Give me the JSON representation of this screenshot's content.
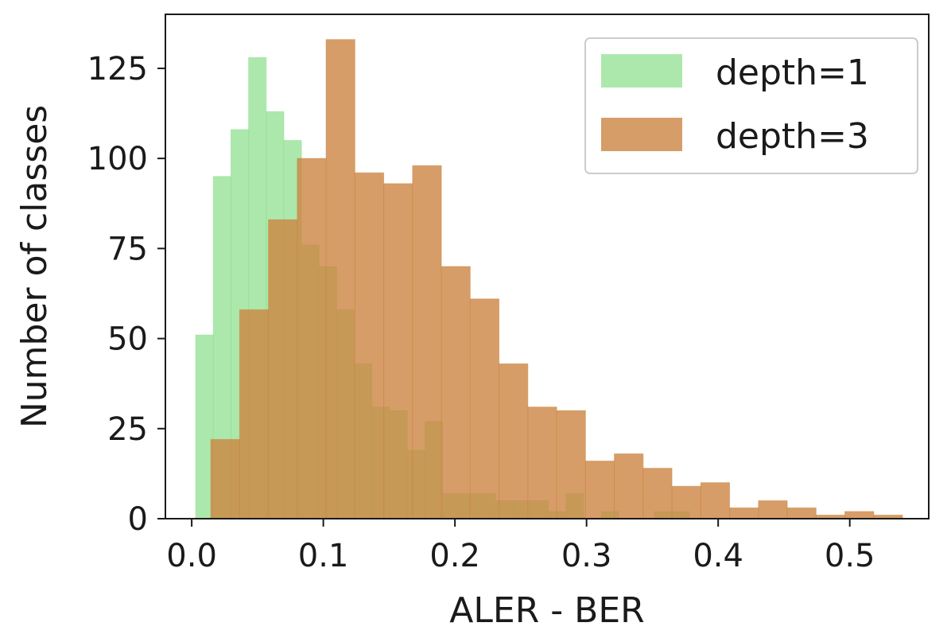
{
  "chart_data": {
    "type": "bar",
    "histogram": true,
    "xlabel": "ALER - BER",
    "ylabel": "Number of classes",
    "xlim": [
      -0.02,
      0.56
    ],
    "ylim": [
      0,
      140
    ],
    "xticks": [
      0.0,
      0.1,
      0.2,
      0.3,
      0.4,
      0.5
    ],
    "xtick_labels": [
      "0.0",
      "0.1",
      "0.2",
      "0.3",
      "0.4",
      "0.5"
    ],
    "yticks": [
      0,
      25,
      50,
      75,
      100,
      125
    ],
    "ytick_labels": [
      "0",
      "25",
      "50",
      "75",
      "100",
      "125"
    ],
    "grid": false,
    "legend_position": "top-right",
    "series": [
      {
        "name": "depth=1",
        "color": "#90e090",
        "bin_start": 0.003,
        "bin_width": 0.0134,
        "values": [
          51,
          95,
          108,
          128,
          113,
          105,
          76,
          70,
          58,
          43,
          31,
          30,
          19,
          27,
          7,
          7,
          7,
          5,
          5,
          5,
          2,
          7,
          0,
          2,
          0,
          0,
          2,
          2,
          0,
          0
        ]
      },
      {
        "name": "depth=3",
        "color": "#cd8542",
        "bin_start": 0.0145,
        "bin_width": 0.0219,
        "values": [
          22,
          58,
          83,
          100,
          133,
          96,
          93,
          98,
          70,
          61,
          43,
          31,
          30,
          16,
          18,
          14,
          9,
          10,
          3,
          5,
          3,
          1,
          2,
          1
        ]
      }
    ]
  }
}
